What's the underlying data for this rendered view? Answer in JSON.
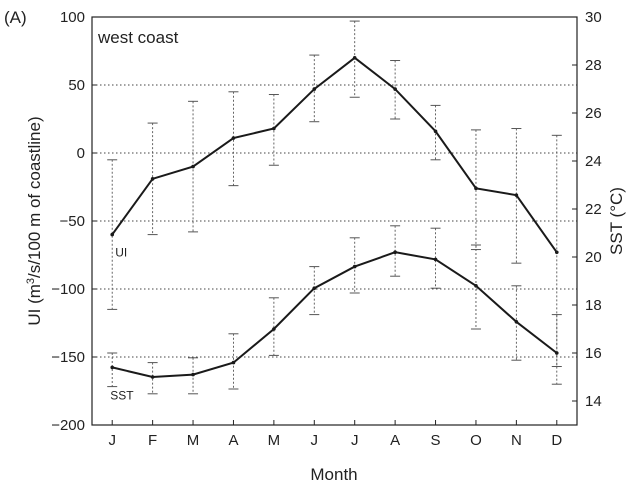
{
  "chart_data": {
    "type": "line",
    "panel_label": "(A)",
    "region_label": "west coast",
    "xlabel": "Month",
    "ylabel_left": "UI (m³/s/100 m of coastline)",
    "ylabel_left_parts": [
      "UI (m",
      "3",
      "/s/100 m of coastline)"
    ],
    "ylabel_right": "SST (°C)",
    "categories": [
      "J",
      "F",
      "M",
      "A",
      "M",
      "J",
      "J",
      "A",
      "S",
      "O",
      "N",
      "D"
    ],
    "ylim_left": [
      -200,
      100
    ],
    "yticks_left": [
      -200,
      -150,
      -100,
      -50,
      0,
      50,
      100
    ],
    "ylim_right": [
      13,
      30
    ],
    "yticks_right": [
      14,
      16,
      18,
      20,
      22,
      24,
      26,
      28,
      30
    ],
    "grid": "dotted-horizontal",
    "series": [
      {
        "name": "UI",
        "axis": "left",
        "values": [
          -60,
          -19,
          -10,
          11,
          18,
          47,
          70,
          47,
          16,
          -26,
          -31,
          -73
        ],
        "err_high": [
          -5,
          22,
          38,
          45,
          43,
          72,
          97,
          68,
          35,
          17,
          18,
          13
        ],
        "err_low": [
          -115,
          -60,
          -58,
          -24,
          -9,
          23,
          41,
          25,
          -5,
          -71,
          -81,
          -157
        ]
      },
      {
        "name": "SST",
        "axis": "right",
        "values": [
          15.4,
          15.0,
          15.1,
          15.6,
          17.0,
          18.7,
          19.6,
          20.2,
          19.9,
          18.8,
          17.3,
          16.0
        ],
        "err_high": [
          16.0,
          15.6,
          15.8,
          16.8,
          18.3,
          19.6,
          20.8,
          21.3,
          21.2,
          20.5,
          18.8,
          17.6
        ],
        "err_low": [
          14.6,
          14.3,
          14.3,
          14.5,
          15.9,
          17.6,
          18.5,
          19.2,
          18.7,
          17.0,
          15.7,
          14.7
        ]
      }
    ]
  }
}
